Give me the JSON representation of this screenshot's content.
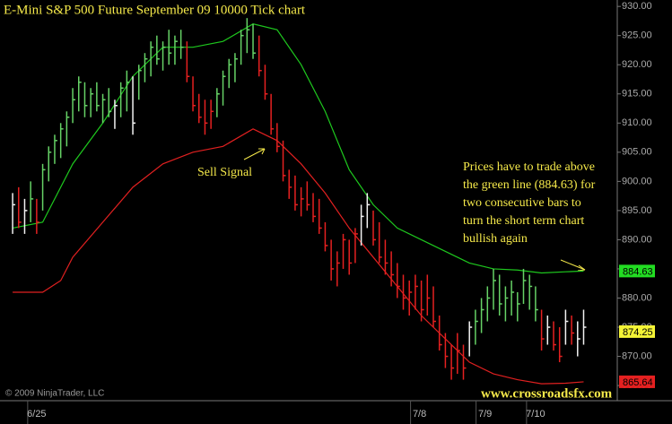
{
  "chart_data": {
    "type": "ohlc",
    "title": "E-Mini S&P 500 Future September 09 10000 Tick chart",
    "high": [
      898,
      899,
      897,
      900,
      897,
      903,
      906,
      908,
      910,
      912,
      916,
      918,
      917,
      916,
      917,
      915,
      916,
      914,
      917,
      919,
      918,
      920,
      922,
      924,
      925,
      924,
      926,
      925,
      926,
      924,
      918,
      915,
      914,
      914,
      916,
      919,
      921,
      922,
      926,
      928,
      927,
      925,
      920,
      915,
      910,
      907,
      902,
      901,
      899,
      900,
      898,
      897,
      893,
      890,
      888,
      891,
      890,
      892,
      896,
      898,
      895,
      893,
      890,
      888,
      886,
      884,
      883,
      884,
      883,
      884,
      882,
      877,
      874,
      872,
      874,
      872,
      876,
      878,
      880,
      882,
      885,
      884,
      882,
      883,
      881,
      885,
      884,
      882,
      878,
      877,
      876,
      875,
      878,
      877,
      876,
      878
    ],
    "low": [
      891,
      892,
      891,
      893,
      891,
      895,
      900,
      903,
      904,
      906,
      910,
      912,
      911,
      911,
      912,
      910,
      911,
      909,
      911,
      912,
      908,
      914,
      917,
      918,
      920,
      919,
      920,
      920,
      921,
      917,
      912,
      910,
      908,
      909,
      911,
      913,
      916,
      917,
      920,
      922,
      921,
      918,
      914,
      908,
      905,
      900,
      897,
      895,
      894,
      895,
      893,
      891,
      888,
      883,
      882,
      885,
      884,
      886,
      889,
      892,
      889,
      886,
      884,
      882,
      880,
      878,
      877,
      878,
      876,
      877,
      875,
      871,
      868,
      866,
      867,
      866,
      870,
      872,
      874,
      876,
      878,
      877,
      876,
      877,
      876,
      879,
      878,
      876,
      871,
      872,
      871,
      869,
      872,
      872,
      870,
      872
    ],
    "close": [
      896,
      893,
      895,
      897,
      893,
      902,
      905,
      907,
      909,
      911,
      914,
      917,
      913,
      915,
      913,
      914,
      912,
      913,
      916,
      917,
      910,
      919,
      921,
      923,
      921,
      923,
      922,
      924,
      923,
      918,
      913,
      911,
      910,
      912,
      915,
      918,
      920,
      921,
      925,
      926,
      922,
      919,
      915,
      909,
      906,
      901,
      899,
      896,
      897,
      896,
      894,
      892,
      889,
      885,
      886,
      890,
      886,
      891,
      894,
      896,
      890,
      887,
      886,
      884,
      882,
      880,
      881,
      882,
      878,
      880,
      876,
      872,
      870,
      868,
      871,
      868,
      875,
      876,
      878,
      880,
      883,
      879,
      880,
      881,
      879,
      883,
      882,
      878,
      873,
      875,
      872,
      870,
      876,
      874,
      873,
      875
    ],
    "bar_color": [
      "w",
      "r",
      "w",
      "g",
      "r",
      "g",
      "g",
      "g",
      "g",
      "g",
      "g",
      "g",
      "g",
      "g",
      "g",
      "g",
      "g",
      "w",
      "g",
      "g",
      "w",
      "g",
      "g",
      "g",
      "g",
      "g",
      "g",
      "g",
      "g",
      "r",
      "r",
      "r",
      "r",
      "r",
      "g",
      "g",
      "g",
      "g",
      "g",
      "g",
      "g",
      "r",
      "r",
      "r",
      "r",
      "r",
      "r",
      "r",
      "r",
      "r",
      "r",
      "r",
      "r",
      "r",
      "r",
      "r",
      "r",
      "r",
      "w",
      "w",
      "r",
      "r",
      "r",
      "r",
      "r",
      "r",
      "r",
      "r",
      "r",
      "r",
      "r",
      "r",
      "r",
      "r",
      "r",
      "r",
      "w",
      "g",
      "g",
      "g",
      "g",
      "g",
      "g",
      "g",
      "g",
      "g",
      "g",
      "g",
      "r",
      "w",
      "r",
      "r",
      "w",
      "r",
      "w",
      "w"
    ],
    "palette": {
      "g": "#66d266",
      "r": "#e52020",
      "w": "#f2f2f2"
    },
    "lines": [
      {
        "color": "#1ec81e",
        "x": [
          0,
          5,
          10,
          15,
          20,
          25,
          30,
          35,
          40,
          44,
          48,
          52,
          56,
          60,
          64,
          68,
          72,
          76,
          80,
          84,
          88,
          92,
          95
        ],
        "values": [
          892,
          893,
          903,
          910,
          918,
          923,
          923,
          924,
          927,
          926,
          920,
          912,
          902,
          896,
          892,
          890,
          888,
          886,
          885,
          884.8,
          884.3,
          884.5,
          884.63
        ]
      },
      {
        "color": "#e02020",
        "x": [
          0,
          5,
          8,
          10,
          15,
          20,
          25,
          30,
          35,
          40,
          44,
          48,
          52,
          56,
          60,
          64,
          68,
          72,
          76,
          80,
          84,
          88,
          92,
          95
        ],
        "values": [
          881,
          881,
          883,
          887,
          893,
          899,
          903,
          905,
          906,
          909,
          907,
          903,
          898,
          892,
          887,
          882,
          877,
          873,
          869,
          867,
          866,
          865.3,
          865.4,
          865.64
        ]
      }
    ],
    "price_markers": [
      {
        "value": 884.63,
        "color": "#22dd22"
      },
      {
        "value": 874.25,
        "color": "#f4f436"
      },
      {
        "value": 865.64,
        "color": "#e52020"
      }
    ],
    "xlim": [
      -2.1,
      100.6
    ],
    "ylim": [
      862.4,
      931.1
    ],
    "yticks": [
      {
        "value": 865,
        "label": "865.00"
      },
      {
        "value": 870,
        "label": "870.00"
      },
      {
        "value": 875,
        "label": "875.00"
      },
      {
        "value": 880,
        "label": "880.00"
      },
      {
        "value": 885,
        "label": "885.00"
      },
      {
        "value": 890,
        "label": "890.00"
      },
      {
        "value": 895,
        "label": "895.00"
      },
      {
        "value": 900,
        "label": "900.00"
      },
      {
        "value": 905,
        "label": "905.00"
      },
      {
        "value": 910,
        "label": "910.00"
      },
      {
        "value": 915,
        "label": "915.00"
      },
      {
        "value": 920,
        "label": "920.00"
      },
      {
        "value": 925,
        "label": "925.00"
      },
      {
        "value": 930,
        "label": "930.00"
      }
    ],
    "xticks": [
      {
        "value": 4,
        "label": "6/25"
      },
      {
        "value": 67.7,
        "label": "7/8"
      },
      {
        "value": 78.6,
        "label": "7/9"
      },
      {
        "value": 87,
        "label": "7/10"
      }
    ],
    "annotations": {
      "sell_signal": "Sell Signal",
      "note_lines": [
        "Prices have to trade above",
        "the green line (884.63) for",
        "two consecutive bars to",
        "turn the short term chart",
        "bullish again"
      ],
      "copyright": "© 2009 NinjaTrader, LLC",
      "website": "www.crossroadsfx.com"
    }
  }
}
